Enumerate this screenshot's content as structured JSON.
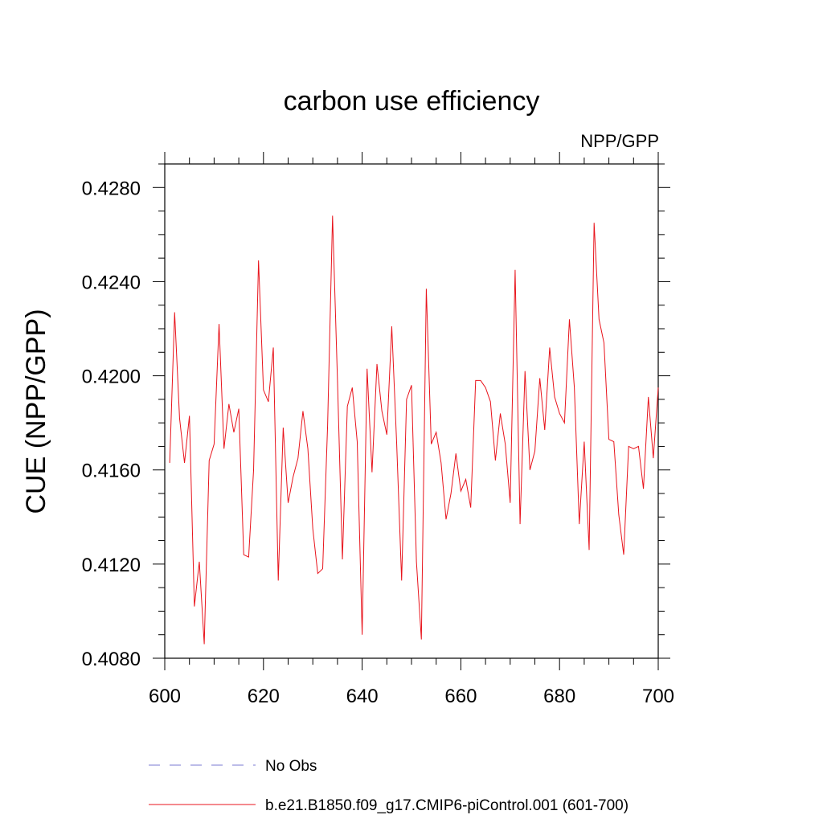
{
  "chart_data": {
    "type": "line",
    "title": "carbon use efficiency",
    "subtitle": "NPP/GPP",
    "xlabel": "",
    "ylabel": "CUE  (NPP/GPP)",
    "xlim": [
      600,
      700
    ],
    "ylim": [
      0.408,
      0.429
    ],
    "x_ticks": [
      "600",
      "620",
      "640",
      "660",
      "680",
      "700"
    ],
    "y_ticks": [
      "0.4080",
      "0.4120",
      "0.4160",
      "0.4200",
      "0.4240",
      "0.4280"
    ],
    "grid": false,
    "legend_position": "bottom",
    "series": [
      {
        "name": "b.e21.B1850.f09_g17.CMIP6-piControl.001 (601-700)",
        "color": "#e8141c",
        "style": "solid",
        "x": [
          601,
          602,
          603,
          604,
          605,
          606,
          607,
          608,
          609,
          610,
          611,
          612,
          613,
          614,
          615,
          616,
          617,
          618,
          619,
          620,
          621,
          622,
          623,
          624,
          625,
          626,
          627,
          628,
          629,
          630,
          631,
          632,
          633,
          634,
          635,
          636,
          637,
          638,
          639,
          640,
          641,
          642,
          643,
          644,
          645,
          646,
          647,
          648,
          649,
          650,
          651,
          652,
          653,
          654,
          655,
          656,
          657,
          658,
          659,
          660,
          661,
          662,
          663,
          664,
          665,
          666,
          667,
          668,
          669,
          670,
          671,
          672,
          673,
          674,
          675,
          676,
          677,
          678,
          679,
          680,
          681,
          682,
          683,
          684,
          685,
          686,
          687,
          688,
          689,
          690,
          691,
          692,
          693,
          694,
          695,
          696,
          697,
          698,
          699,
          700
        ],
        "values": [
          0.4163,
          0.4227,
          0.4182,
          0.4163,
          0.4183,
          0.4102,
          0.4121,
          0.4086,
          0.4164,
          0.4171,
          0.4222,
          0.4169,
          0.4188,
          0.4176,
          0.4186,
          0.4124,
          0.4123,
          0.416,
          0.4249,
          0.4194,
          0.4189,
          0.4212,
          0.4113,
          0.4178,
          0.4146,
          0.4157,
          0.4165,
          0.4185,
          0.4169,
          0.4135,
          0.4116,
          0.4118,
          0.4179,
          0.4268,
          0.4198,
          0.4122,
          0.4187,
          0.4195,
          0.4172,
          0.409,
          0.4203,
          0.4159,
          0.4205,
          0.4185,
          0.4175,
          0.4221,
          0.4171,
          0.4113,
          0.419,
          0.4196,
          0.4121,
          0.4088,
          0.4237,
          0.4171,
          0.4176,
          0.4163,
          0.4139,
          0.415,
          0.4167,
          0.4151,
          0.4156,
          0.4144,
          0.4198,
          0.4198,
          0.4195,
          0.4189,
          0.4164,
          0.4184,
          0.4171,
          0.4146,
          0.4245,
          0.4137,
          0.4202,
          0.416,
          0.4168,
          0.4199,
          0.4177,
          0.4212,
          0.4191,
          0.4184,
          0.418,
          0.4224,
          0.4195,
          0.4137,
          0.4172,
          0.4126,
          0.4265,
          0.4224,
          0.4214,
          0.4173,
          0.4172,
          0.4141,
          0.4124,
          0.417,
          0.4169,
          0.417,
          0.4152,
          0.4191,
          0.4165,
          0.4195
        ]
      },
      {
        "name": "No Obs",
        "color": "#7a7ad0",
        "style": "dashed",
        "x": [],
        "values": []
      }
    ]
  }
}
